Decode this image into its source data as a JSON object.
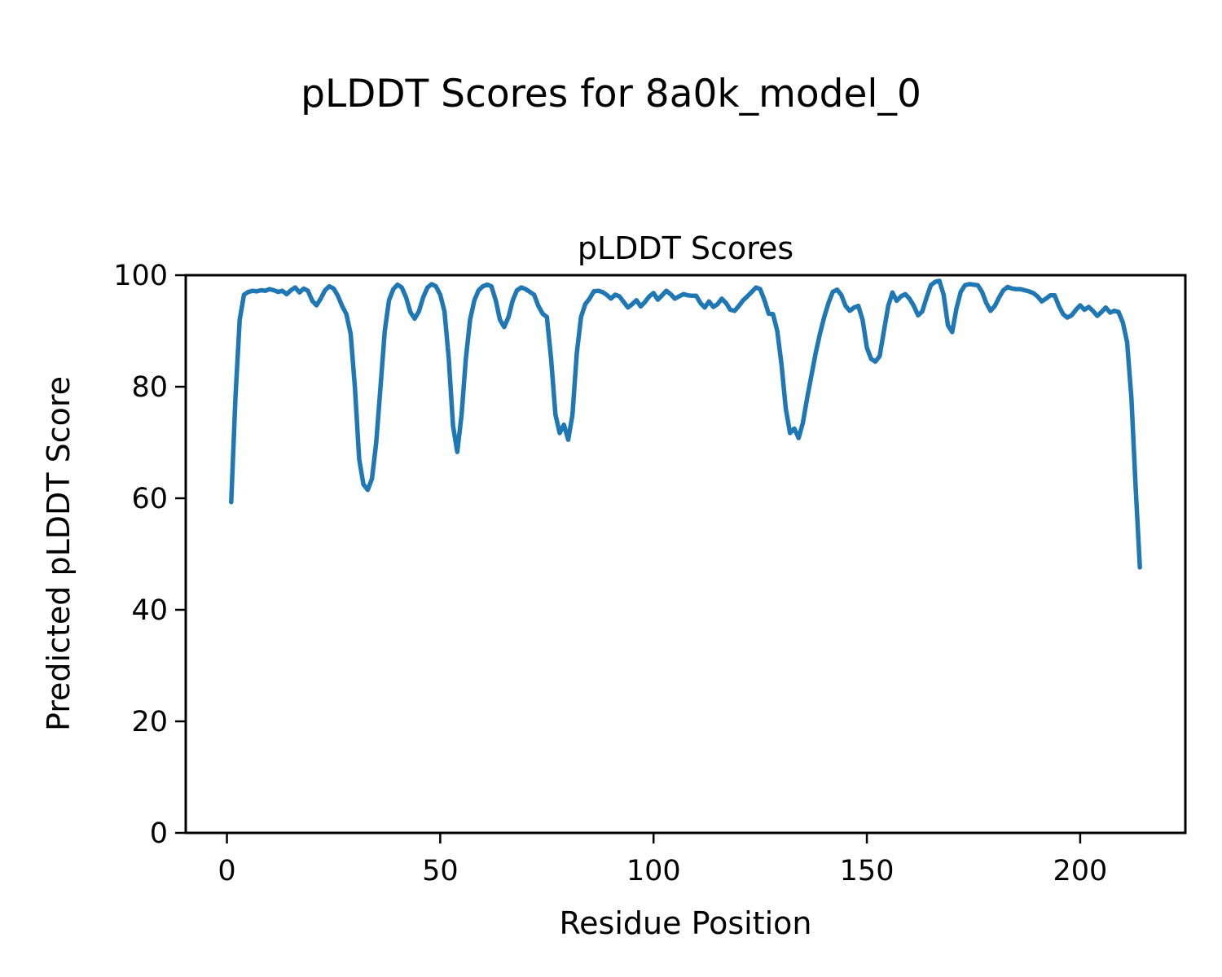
{
  "figure": {
    "suptitle": "pLDDT Scores for 8a0k_model_0",
    "background_color": "#ffffff",
    "text_color": "#000000"
  },
  "chart_data": {
    "type": "line",
    "title": "pLDDT Scores",
    "xlabel": "Residue Position",
    "ylabel": "Predicted pLDDT Score",
    "xlim": [
      -9.65,
      224.65
    ],
    "ylim": [
      0,
      100
    ],
    "xticks": [
      0,
      50,
      100,
      150,
      200
    ],
    "yticks": [
      0,
      20,
      40,
      60,
      80,
      100
    ],
    "grid": false,
    "legend_position": "none",
    "axis_color": "#000000",
    "series": [
      {
        "name": "pLDDT",
        "color": "#1f77b4",
        "x_start": 1,
        "x_step": 1,
        "values": [
          59.3,
          78.0,
          92.0,
          96.5,
          97.0,
          97.2,
          97.1,
          97.3,
          97.2,
          97.5,
          97.3,
          97.0,
          97.2,
          96.6,
          97.3,
          97.8,
          96.9,
          97.6,
          97.2,
          95.4,
          94.6,
          95.8,
          97.3,
          98.0,
          97.6,
          96.3,
          94.5,
          93.0,
          89.5,
          80.0,
          67.0,
          62.5,
          61.5,
          63.5,
          70.0,
          80.0,
          90.0,
          95.5,
          97.5,
          98.3,
          97.8,
          96.0,
          93.4,
          92.2,
          93.5,
          96.0,
          97.8,
          98.4,
          98.0,
          96.5,
          93.5,
          85.0,
          73.0,
          68.3,
          75.0,
          85.0,
          92.0,
          95.5,
          97.3,
          98.0,
          98.3,
          98.0,
          95.5,
          92.0,
          90.7,
          92.5,
          95.5,
          97.3,
          97.8,
          97.5,
          97.0,
          96.5,
          94.5,
          93.1,
          92.5,
          85.0,
          75.0,
          71.7,
          73.2,
          70.5,
          75.0,
          86.0,
          92.5,
          94.8,
          95.8,
          97.1,
          97.2,
          97.0,
          96.5,
          95.8,
          96.5,
          96.2,
          95.2,
          94.2,
          94.8,
          95.5,
          94.4,
          95.2,
          96.2,
          96.8,
          95.6,
          96.4,
          97.2,
          96.6,
          95.8,
          96.2,
          96.6,
          96.4,
          96.3,
          96.3,
          95.0,
          94.2,
          95.3,
          94.3,
          94.8,
          95.8,
          95.0,
          93.8,
          93.6,
          94.5,
          95.5,
          96.2,
          97.0,
          97.8,
          97.5,
          95.5,
          93.1,
          93.0,
          90.0,
          84.0,
          76.0,
          71.7,
          72.5,
          70.8,
          73.5,
          78.0,
          82.0,
          86.0,
          89.5,
          92.5,
          95.0,
          97.0,
          97.4,
          96.5,
          94.5,
          93.6,
          94.2,
          94.5,
          92.0,
          87.0,
          85.0,
          84.5,
          85.5,
          90.0,
          94.5,
          96.9,
          95.4,
          96.2,
          96.6,
          95.8,
          94.5,
          92.8,
          93.5,
          96.0,
          98.2,
          98.8,
          99.0,
          96.5,
          91.0,
          89.8,
          94.0,
          97.0,
          98.2,
          98.4,
          98.3,
          98.2,
          97.0,
          95.0,
          93.6,
          94.5,
          96.0,
          97.3,
          97.9,
          97.6,
          97.5,
          97.5,
          97.3,
          97.1,
          96.8,
          96.2,
          95.3,
          95.8,
          96.4,
          96.4,
          94.5,
          93.0,
          92.4,
          92.8,
          93.8,
          94.6,
          93.8,
          94.3,
          93.6,
          92.7,
          93.4,
          94.2,
          93.3,
          93.6,
          93.4,
          91.5,
          88.0,
          78.0,
          62.0,
          47.6
        ]
      }
    ]
  }
}
